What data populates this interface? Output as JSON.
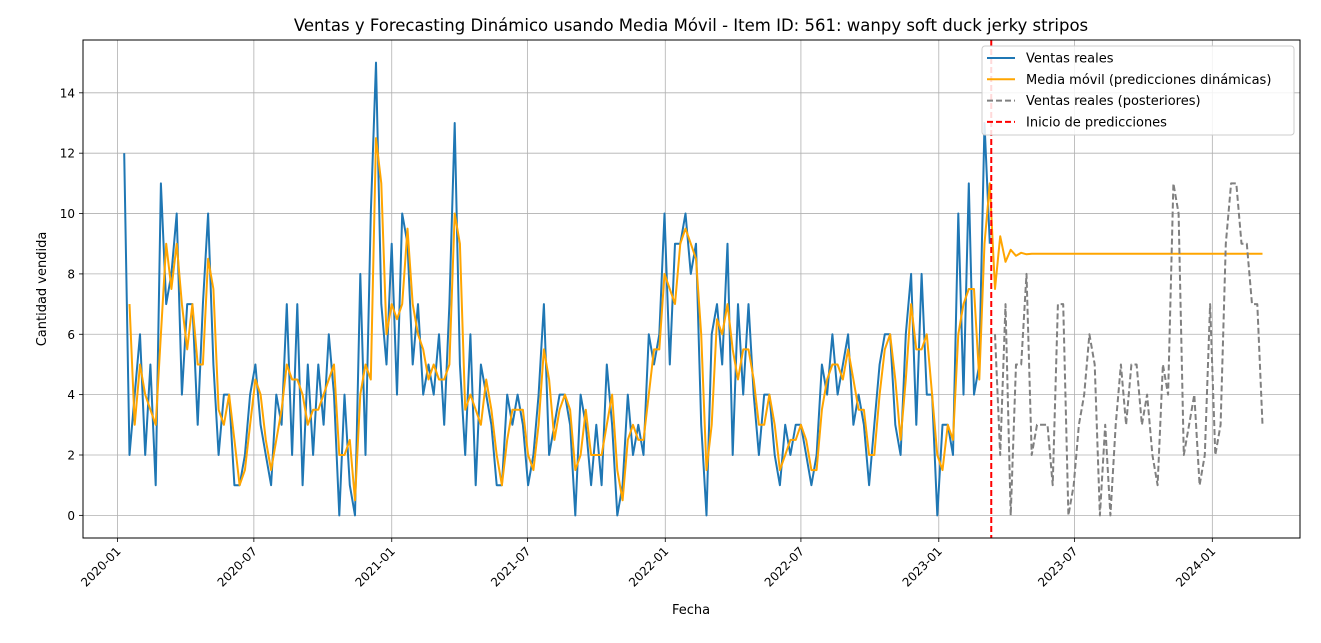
{
  "chart_data": {
    "type": "line",
    "title": "Ventas y Forecasting Dinámico usando Media Móvil - Item ID: 561: wanpy soft duck jerky stripos",
    "xlabel": "Fecha",
    "ylabel": "Cantidad vendida",
    "xlim": [
      "2019-11-16",
      "2024-04-27"
    ],
    "ylim": [
      -0.75,
      15.75
    ],
    "x_ticks": [
      "2020-01",
      "2020-07",
      "2021-01",
      "2021-07",
      "2022-01",
      "2022-07",
      "2023-01",
      "2023-07",
      "2024-01"
    ],
    "y_ticks": [
      0,
      2,
      4,
      6,
      8,
      10,
      12,
      14
    ],
    "grid": true,
    "legend_position": "upper right",
    "prediction_start": "2023-03-12",
    "series": [
      {
        "name": "Ventas reales",
        "color": "#1f77b4",
        "style": "solid",
        "x": [
          "2020-01-10",
          "2020-01-17",
          "2020-01-24",
          "2020-01-31",
          "2020-02-07",
          "2020-02-14",
          "2020-02-21",
          "2020-02-28",
          "2020-03-06",
          "2020-03-13",
          "2020-03-20",
          "2020-03-27",
          "2020-04-03",
          "2020-04-10",
          "2020-04-17",
          "2020-04-24",
          "2020-05-01",
          "2020-05-08",
          "2020-05-15",
          "2020-05-22",
          "2020-05-29",
          "2020-06-05",
          "2020-06-12",
          "2020-06-19",
          "2020-06-26",
          "2020-07-03",
          "2020-07-10",
          "2020-07-17",
          "2020-07-24",
          "2020-07-31",
          "2020-08-07",
          "2020-08-14",
          "2020-08-21",
          "2020-08-28",
          "2020-09-04",
          "2020-09-11",
          "2020-09-18",
          "2020-09-25",
          "2020-10-02",
          "2020-10-09",
          "2020-10-16",
          "2020-10-23",
          "2020-10-30",
          "2020-11-06",
          "2020-11-13",
          "2020-11-20",
          "2020-11-27",
          "2020-12-04",
          "2020-12-11",
          "2020-12-18",
          "2020-12-25",
          "2021-01-01",
          "2021-01-08",
          "2021-01-15",
          "2021-01-22",
          "2021-01-29",
          "2021-02-05",
          "2021-02-12",
          "2021-02-19",
          "2021-02-26",
          "2021-03-05",
          "2021-03-12",
          "2021-03-19",
          "2021-03-26",
          "2021-04-02",
          "2021-04-09",
          "2021-04-16",
          "2021-04-23",
          "2021-04-30",
          "2021-05-07",
          "2021-05-14",
          "2021-05-21",
          "2021-05-28",
          "2021-06-04",
          "2021-06-11",
          "2021-06-18",
          "2021-06-25",
          "2021-07-02",
          "2021-07-09",
          "2021-07-16",
          "2021-07-23",
          "2021-07-30",
          "2021-08-06",
          "2021-08-13",
          "2021-08-20",
          "2021-08-27",
          "2021-09-03",
          "2021-09-10",
          "2021-09-17",
          "2021-09-24",
          "2021-10-01",
          "2021-10-08",
          "2021-10-15",
          "2021-10-22",
          "2021-10-29",
          "2021-11-05",
          "2021-11-12",
          "2021-11-19",
          "2021-11-26",
          "2021-12-03",
          "2021-12-10",
          "2021-12-17",
          "2021-12-24",
          "2021-12-31",
          "2022-01-07",
          "2022-01-14",
          "2022-01-21",
          "2022-01-28",
          "2022-02-04",
          "2022-02-11",
          "2022-02-18",
          "2022-02-25",
          "2022-03-04",
          "2022-03-11",
          "2022-03-18",
          "2022-03-25",
          "2022-04-01",
          "2022-04-08",
          "2022-04-15",
          "2022-04-22",
          "2022-04-29",
          "2022-05-06",
          "2022-05-13",
          "2022-05-20",
          "2022-05-27",
          "2022-06-03",
          "2022-06-10",
          "2022-06-17",
          "2022-06-24",
          "2022-07-01",
          "2022-07-08",
          "2022-07-15",
          "2022-07-22",
          "2022-07-29",
          "2022-08-05",
          "2022-08-12",
          "2022-08-19",
          "2022-08-26",
          "2022-09-02",
          "2022-09-09",
          "2022-09-16",
          "2022-09-23",
          "2022-09-30",
          "2022-10-07",
          "2022-10-14",
          "2022-10-21",
          "2022-10-28",
          "2022-11-04",
          "2022-11-11",
          "2022-11-18",
          "2022-11-25",
          "2022-12-02",
          "2022-12-09",
          "2022-12-16",
          "2022-12-23",
          "2022-12-30",
          "2023-01-06",
          "2023-01-13",
          "2023-01-20",
          "2023-01-27",
          "2023-02-03",
          "2023-02-10",
          "2023-02-17",
          "2023-02-24",
          "2023-03-03",
          "2023-03-10"
        ],
        "y": [
          12,
          2,
          4,
          6,
          2,
          5,
          1,
          11,
          7,
          8,
          10,
          4,
          7,
          7,
          3,
          7,
          10,
          5,
          2,
          4,
          4,
          1,
          1,
          2,
          4,
          5,
          3,
          2,
          1,
          4,
          3,
          7,
          2,
          7,
          1,
          5,
          2,
          5,
          3,
          6,
          4,
          0,
          4,
          1,
          0,
          8,
          2,
          10,
          15,
          7,
          5,
          9,
          4,
          10,
          9,
          5,
          7,
          4,
          5,
          4,
          6,
          3,
          7,
          13,
          5,
          2,
          6,
          1,
          5,
          4,
          3,
          1,
          1,
          4,
          3,
          4,
          3,
          1,
          2,
          4,
          7,
          2,
          3,
          4,
          4,
          3,
          0,
          4,
          3,
          1,
          3,
          1,
          5,
          3,
          0,
          1,
          4,
          2,
          3,
          2,
          6,
          5,
          6,
          10,
          5,
          9,
          9,
          10,
          8,
          9,
          3,
          0,
          6,
          7,
          5,
          9,
          2,
          7,
          4,
          7,
          4,
          2,
          4,
          4,
          2,
          1,
          3,
          2,
          3,
          3,
          2,
          1,
          2,
          5,
          4,
          6,
          4,
          5,
          6,
          3,
          4,
          3,
          1,
          3,
          5,
          6,
          6,
          3,
          2,
          6,
          8,
          3,
          8,
          4,
          4,
          0,
          3,
          3,
          2,
          10,
          4,
          11,
          4,
          5,
          13,
          9
        ]
      },
      {
        "name": "Media móvil (predicciones dinámicas)",
        "color": "#ffa500",
        "style": "solid",
        "x": [
          "2020-01-17",
          "2020-01-24",
          "2020-01-31",
          "2020-02-07",
          "2020-02-14",
          "2020-02-21",
          "2020-02-28",
          "2020-03-06",
          "2020-03-13",
          "2020-03-20",
          "2020-03-27",
          "2020-04-03",
          "2020-04-10",
          "2020-04-17",
          "2020-04-24",
          "2020-05-01",
          "2020-05-08",
          "2020-05-15",
          "2020-05-22",
          "2020-05-29",
          "2020-06-05",
          "2020-06-12",
          "2020-06-19",
          "2020-06-26",
          "2020-07-03",
          "2020-07-10",
          "2020-07-17",
          "2020-07-24",
          "2020-07-31",
          "2020-08-07",
          "2020-08-14",
          "2020-08-21",
          "2020-08-28",
          "2020-09-04",
          "2020-09-11",
          "2020-09-18",
          "2020-09-25",
          "2020-10-02",
          "2020-10-09",
          "2020-10-16",
          "2020-10-23",
          "2020-10-30",
          "2020-11-06",
          "2020-11-13",
          "2020-11-20",
          "2020-11-27",
          "2020-12-04",
          "2020-12-11",
          "2020-12-18",
          "2020-12-25",
          "2021-01-01",
          "2021-01-08",
          "2021-01-15",
          "2021-01-22",
          "2021-01-29",
          "2021-02-05",
          "2021-02-12",
          "2021-02-19",
          "2021-02-26",
          "2021-03-05",
          "2021-03-12",
          "2021-03-19",
          "2021-03-26",
          "2021-04-02",
          "2021-04-09",
          "2021-04-16",
          "2021-04-23",
          "2021-04-30",
          "2021-05-07",
          "2021-05-14",
          "2021-05-21",
          "2021-05-28",
          "2021-06-04",
          "2021-06-11",
          "2021-06-18",
          "2021-06-25",
          "2021-07-02",
          "2021-07-09",
          "2021-07-16",
          "2021-07-23",
          "2021-07-30",
          "2021-08-06",
          "2021-08-13",
          "2021-08-20",
          "2021-08-27",
          "2021-09-03",
          "2021-09-10",
          "2021-09-17",
          "2021-09-24",
          "2021-10-01",
          "2021-10-08",
          "2021-10-15",
          "2021-10-22",
          "2021-10-29",
          "2021-11-05",
          "2021-11-12",
          "2021-11-19",
          "2021-11-26",
          "2021-12-03",
          "2021-12-10",
          "2021-12-17",
          "2021-12-24",
          "2021-12-31",
          "2022-01-07",
          "2022-01-14",
          "2022-01-21",
          "2022-01-28",
          "2022-02-04",
          "2022-02-11",
          "2022-02-18",
          "2022-02-25",
          "2022-03-04",
          "2022-03-11",
          "2022-03-18",
          "2022-03-25",
          "2022-04-01",
          "2022-04-08",
          "2022-04-15",
          "2022-04-22",
          "2022-04-29",
          "2022-05-06",
          "2022-05-13",
          "2022-05-20",
          "2022-05-27",
          "2022-06-03",
          "2022-06-10",
          "2022-06-17",
          "2022-06-24",
          "2022-07-01",
          "2022-07-08",
          "2022-07-15",
          "2022-07-22",
          "2022-07-29",
          "2022-08-05",
          "2022-08-12",
          "2022-08-19",
          "2022-08-26",
          "2022-09-02",
          "2022-09-09",
          "2022-09-16",
          "2022-09-23",
          "2022-09-30",
          "2022-10-07",
          "2022-10-14",
          "2022-10-21",
          "2022-10-28",
          "2022-11-04",
          "2022-11-11",
          "2022-11-18",
          "2022-11-25",
          "2022-12-02",
          "2022-12-09",
          "2022-12-16",
          "2022-12-23",
          "2022-12-30",
          "2023-01-06",
          "2023-01-13",
          "2023-01-20",
          "2023-01-27",
          "2023-02-03",
          "2023-02-10",
          "2023-02-17",
          "2023-02-24",
          "2023-03-03",
          "2023-03-10",
          "2023-03-17",
          "2023-03-24",
          "2023-03-31",
          "2023-04-07",
          "2023-04-14",
          "2023-04-21",
          "2023-04-28",
          "2023-05-05",
          "2024-03-08"
        ],
        "y": [
          7,
          3,
          5,
          4,
          3.5,
          3,
          6,
          9,
          7.5,
          9,
          7,
          5.5,
          7,
          5,
          5,
          8.5,
          7.5,
          3.5,
          3,
          4,
          2.5,
          1,
          1.5,
          3,
          4.5,
          4,
          2.5,
          1.5,
          2.5,
          3.5,
          5,
          4.5,
          4.5,
          4,
          3,
          3.5,
          3.5,
          4,
          4.5,
          5,
          2,
          2,
          2.5,
          0.5,
          4,
          5,
          4.5,
          12.5,
          11,
          6,
          7,
          6.5,
          7,
          9.5,
          7,
          6,
          5.5,
          4.5,
          5,
          4.5,
          4.5,
          5,
          10,
          9,
          3.5,
          4,
          3.5,
          3,
          4.5,
          3.5,
          2,
          1,
          2.5,
          3.5,
          3.5,
          3.5,
          2,
          1.5,
          3,
          5.5,
          4.5,
          2.5,
          3.5,
          4,
          3.5,
          1.5,
          2,
          3.5,
          2,
          2,
          2,
          3,
          4,
          1.5,
          0.5,
          2.5,
          3,
          2.5,
          2.5,
          4,
          5.5,
          5.5,
          8,
          7.5,
          7,
          9,
          9.5,
          9,
          8.5,
          6,
          1.5,
          3,
          6.5,
          6,
          7,
          5.5,
          4.5,
          5.5,
          5.5,
          4.5,
          3,
          3,
          4,
          3,
          1.5,
          2,
          2.5,
          2.5,
          3,
          2.5,
          1.5,
          1.5,
          3.5,
          4.5,
          5,
          5,
          4.5,
          5.5,
          4.5,
          3.5,
          3.5,
          2,
          2,
          4,
          5.5,
          6,
          4.5,
          2.5,
          4.5,
          7,
          5.5,
          5.5,
          6,
          4,
          2,
          1.5,
          3,
          2.5,
          6,
          7,
          7.5,
          7.5,
          4.5,
          9,
          11,
          7.5,
          9.25,
          8.4,
          8.8,
          8.6,
          8.7,
          8.65,
          8.67,
          8.67
        ]
      },
      {
        "name": "Ventas reales (posteriores)",
        "color": "#808080",
        "style": "dashed",
        "x": [
          "2023-03-17",
          "2023-03-24",
          "2023-03-31",
          "2023-04-07",
          "2023-04-14",
          "2023-04-21",
          "2023-04-28",
          "2023-05-05",
          "2023-05-12",
          "2023-05-19",
          "2023-05-26",
          "2023-06-02",
          "2023-06-09",
          "2023-06-16",
          "2023-06-23",
          "2023-06-30",
          "2023-07-07",
          "2023-07-14",
          "2023-07-21",
          "2023-07-28",
          "2023-08-04",
          "2023-08-11",
          "2023-08-18",
          "2023-08-25",
          "2023-09-01",
          "2023-09-08",
          "2023-09-15",
          "2023-09-22",
          "2023-09-29",
          "2023-10-06",
          "2023-10-13",
          "2023-10-20",
          "2023-10-27",
          "2023-11-03",
          "2023-11-10",
          "2023-11-17",
          "2023-11-24",
          "2023-12-01",
          "2023-12-08",
          "2023-12-15",
          "2023-12-22",
          "2023-12-29",
          "2024-01-05",
          "2024-01-12",
          "2024-01-19",
          "2024-01-26",
          "2024-02-02",
          "2024-02-09",
          "2024-02-16",
          "2024-02-23",
          "2024-03-01",
          "2024-03-08"
        ],
        "y": [
          6,
          2,
          7,
          0,
          5,
          5,
          8,
          2,
          3,
          3,
          3,
          1,
          7,
          7,
          0,
          1,
          3,
          4,
          6,
          5,
          0,
          3,
          0,
          3,
          5,
          3,
          5,
          5,
          3,
          4,
          2,
          1,
          5,
          4,
          11,
          10,
          2,
          3,
          4,
          1,
          2,
          7,
          2,
          3,
          9,
          11,
          11,
          9,
          9,
          7,
          7,
          3
        ]
      }
    ]
  }
}
